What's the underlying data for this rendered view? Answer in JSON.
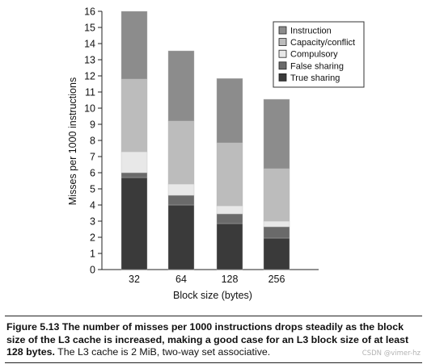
{
  "chart_data": {
    "type": "bar",
    "stacked": true,
    "title": "",
    "xlabel": "Block size (bytes)",
    "ylabel": "Misses per 1000 instructions",
    "ylim": [
      0,
      16
    ],
    "yticks": [
      "0",
      "1",
      "2",
      "3",
      "4",
      "5",
      "6",
      "7",
      "8",
      "9",
      "10",
      "11",
      "12",
      "13",
      "14",
      "15",
      "16"
    ],
    "categories": [
      "32",
      "64",
      "128",
      "256"
    ],
    "series": [
      {
        "name": "True sharing",
        "color": "#3a3a3a",
        "values": [
          5.7,
          4.0,
          2.85,
          1.95
        ]
      },
      {
        "name": "False sharing",
        "color": "#6a6a6a",
        "values": [
          0.3,
          0.6,
          0.6,
          0.7
        ]
      },
      {
        "name": "Compulsory",
        "color": "#e8e8e8",
        "values": [
          1.3,
          0.7,
          0.5,
          0.35
        ]
      },
      {
        "name": "Capacity/conflict",
        "color": "#bcbcbc",
        "values": [
          4.5,
          3.9,
          3.9,
          3.25
        ]
      },
      {
        "name": "Instruction",
        "color": "#8c8c8c",
        "values": [
          4.2,
          4.35,
          3.99,
          4.3
        ]
      }
    ],
    "legend": {
      "placement": "top-right",
      "order": [
        "Instruction",
        "Capacity/conflict",
        "Compulsory",
        "False sharing",
        "True sharing"
      ]
    },
    "grid": false
  },
  "caption": {
    "figure_label": "Figure 5.13",
    "bold_text": "The number of misses per 1000 instructions drops steadily as the block size of the L3 cache is increased, making a good case for an L3 block size of at least 128 bytes.",
    "normal_text": "The L3 cache is 2 MiB, two-way set associative."
  },
  "watermark": "CSDN @vimer-hz"
}
